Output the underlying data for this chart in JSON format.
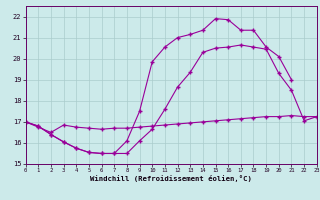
{
  "xlabel": "Windchill (Refroidissement éolien,°C)",
  "xlim": [
    0,
    23
  ],
  "ylim": [
    15,
    22.5
  ],
  "xticks": [
    0,
    1,
    2,
    3,
    4,
    5,
    6,
    7,
    8,
    9,
    10,
    11,
    12,
    13,
    14,
    15,
    16,
    17,
    18,
    19,
    20,
    21,
    22,
    23
  ],
  "yticks": [
    15,
    16,
    17,
    18,
    19,
    20,
    21,
    22
  ],
  "bg_color": "#cceaea",
  "line_color": "#990099",
  "grid_color": "#aacccc",
  "line1_x": [
    0,
    1,
    2,
    3,
    4,
    5,
    6,
    7,
    8,
    9,
    10,
    11,
    12,
    13,
    14,
    15,
    16,
    17,
    18,
    19,
    20,
    21,
    22,
    23
  ],
  "line1_y": [
    17.0,
    16.8,
    16.4,
    16.05,
    15.75,
    15.55,
    15.5,
    15.5,
    15.5,
    16.1,
    16.65,
    17.6,
    18.65,
    19.35,
    20.3,
    20.5,
    20.55,
    20.65,
    20.55,
    20.45,
    19.3,
    18.5,
    17.05,
    17.25
  ],
  "line2_x": [
    0,
    1,
    2,
    3,
    4,
    5,
    6,
    7,
    8,
    9,
    10,
    11,
    12,
    13,
    14,
    15,
    16,
    17,
    18,
    19,
    20,
    21
  ],
  "line2_y": [
    17.0,
    16.8,
    16.4,
    16.05,
    15.75,
    15.55,
    15.5,
    15.5,
    16.1,
    17.5,
    19.85,
    20.55,
    21.0,
    21.15,
    21.35,
    21.9,
    21.85,
    21.35,
    21.35,
    20.55,
    20.1,
    19.0
  ],
  "line3_x": [
    0,
    1,
    2,
    3,
    4,
    5,
    6,
    7,
    8,
    9,
    10,
    11,
    12,
    13,
    14,
    15,
    16,
    17,
    18,
    19,
    20,
    21,
    22,
    23
  ],
  "line3_y": [
    17.0,
    16.75,
    16.5,
    16.85,
    16.75,
    16.7,
    16.65,
    16.7,
    16.7,
    16.75,
    16.8,
    16.85,
    16.9,
    16.95,
    17.0,
    17.05,
    17.1,
    17.15,
    17.2,
    17.25,
    17.25,
    17.3,
    17.25,
    17.25
  ]
}
